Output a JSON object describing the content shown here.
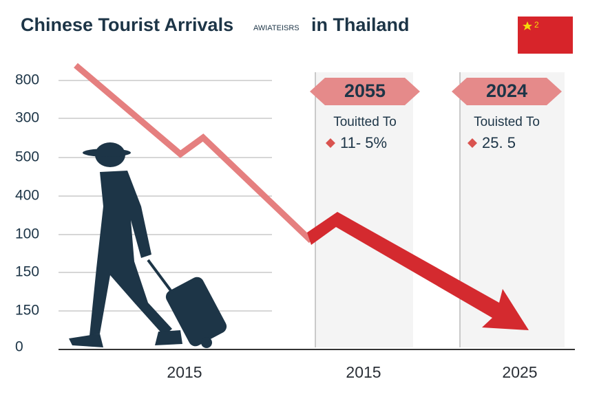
{
  "header": {
    "title_start": "Chinese Tourist Arrivals",
    "title_small": "AWIATEISRS",
    "title_end": "in Thailand",
    "flag_label": "2"
  },
  "y_labels": [
    "800",
    "300",
    "500",
    "400",
    "100",
    "150",
    "150",
    "0"
  ],
  "x_labels": [
    "2015",
    "2015",
    "2025"
  ],
  "panels": [
    {
      "year": "2055",
      "label": "Touitted To",
      "value": "11- 5%"
    },
    {
      "year": "2024",
      "label": "Touisted To",
      "value": "25. 5"
    }
  ]
}
